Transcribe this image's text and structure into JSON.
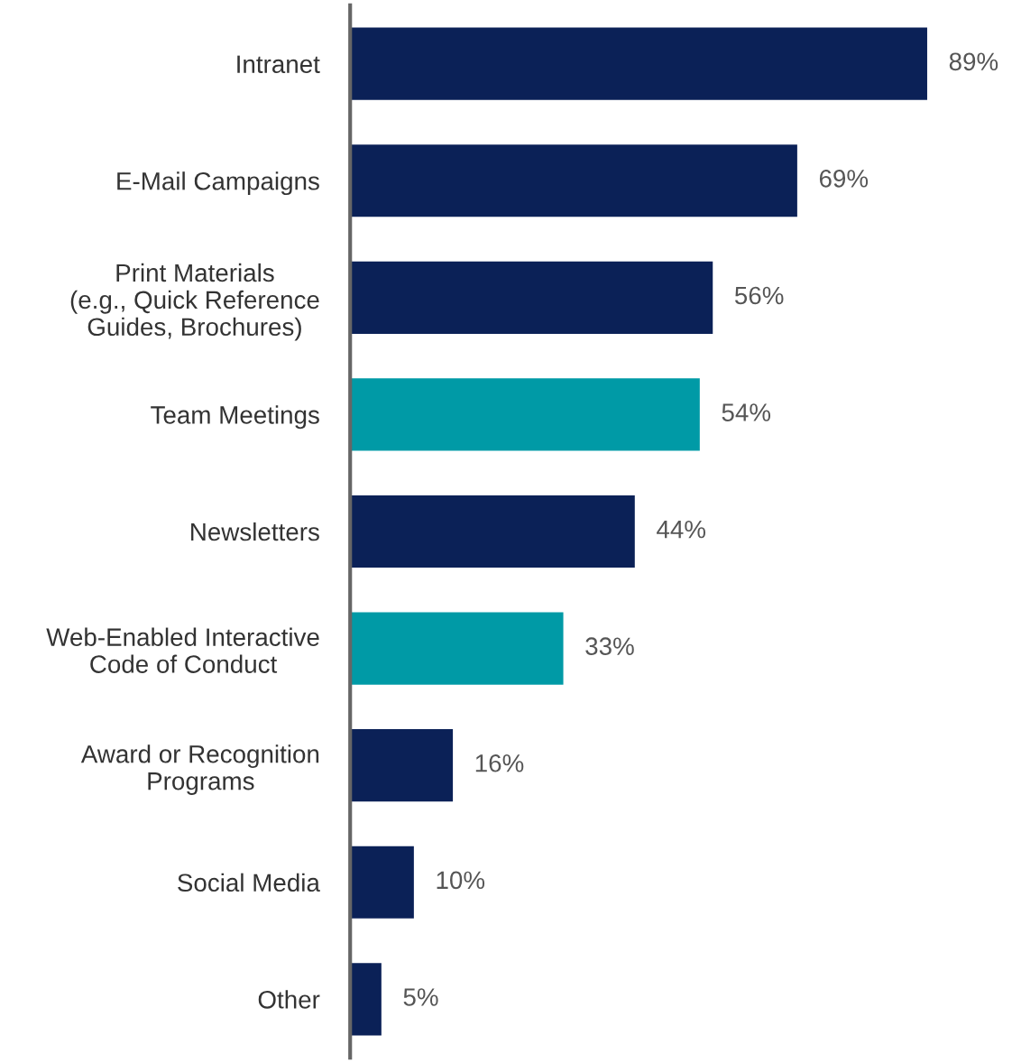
{
  "chart_data": {
    "type": "bar",
    "orientation": "horizontal",
    "categories": [
      "Intranet",
      "E-Mail Campaigns",
      "Print Materials\n(e.g., Quick Reference\nGuides, Brochures)",
      "Team Meetings",
      "Newsletters",
      "Web-Enabled Interactive\nCode of Conduct",
      "Award or Recognition\nPrograms",
      "Social Media",
      "Other"
    ],
    "values": [
      89,
      69,
      56,
      54,
      44,
      33,
      16,
      10,
      5
    ],
    "colors": [
      "#0b2157",
      "#0b2157",
      "#0b2157",
      "#009aa6",
      "#0b2157",
      "#009aa6",
      "#0b2157",
      "#0b2157",
      "#0b2157"
    ],
    "value_labels": [
      "89%",
      "69%",
      "56%",
      "54%",
      "44%",
      "33%",
      "16%",
      "10%",
      "5%"
    ],
    "grid": false,
    "legend": false
  }
}
